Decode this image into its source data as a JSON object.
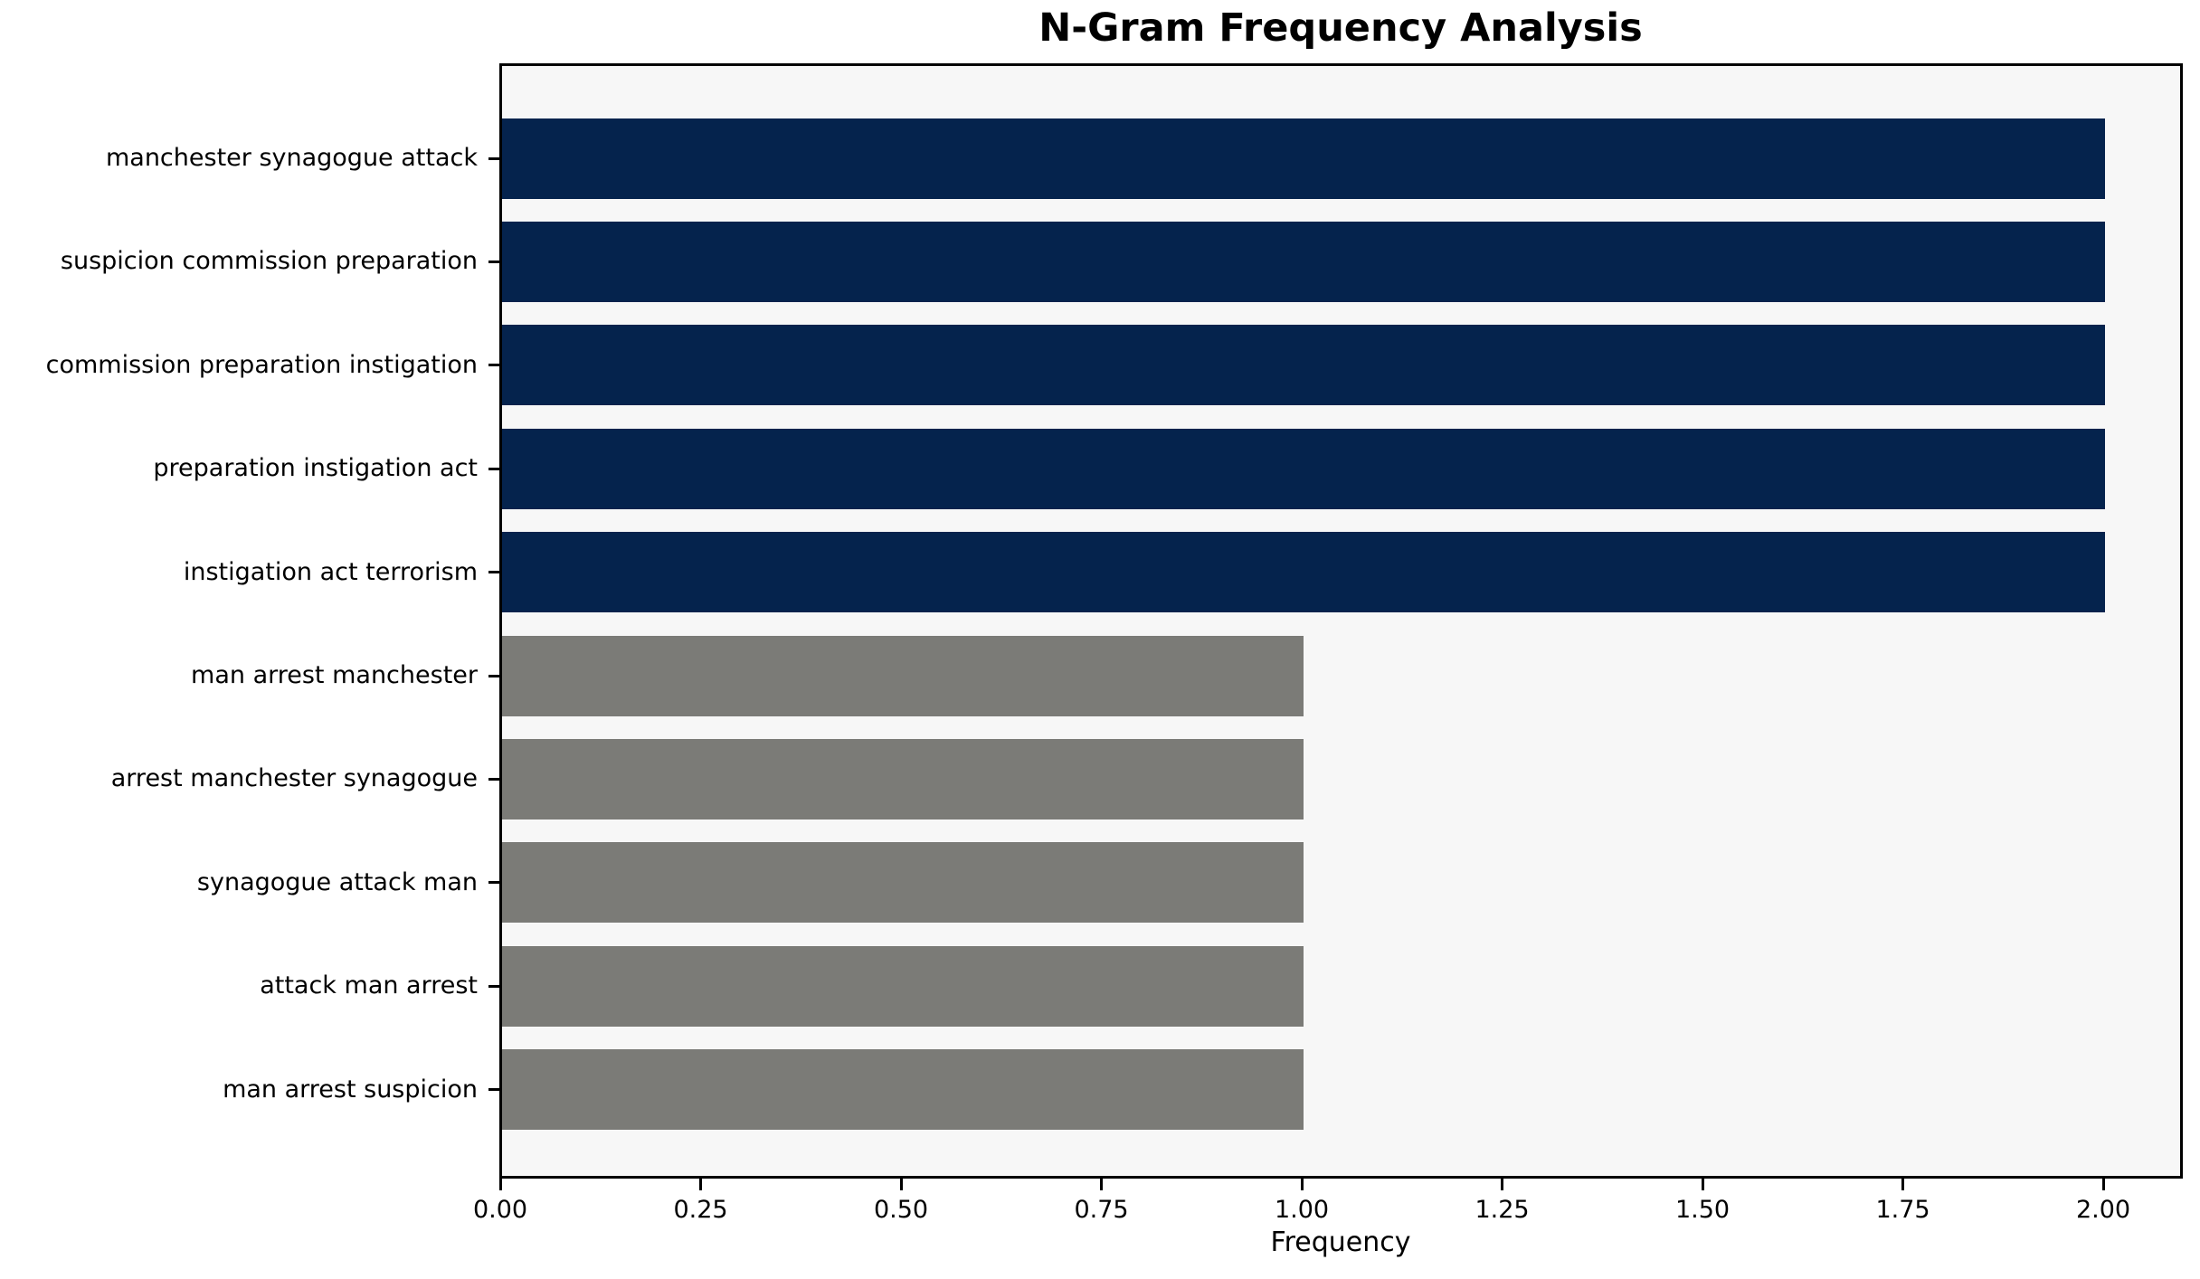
{
  "title": "N-Gram Frequency Analysis",
  "xlabel": "Frequency",
  "chart_data": {
    "type": "bar",
    "orientation": "horizontal",
    "title": "N-Gram Frequency Analysis",
    "xlabel": "Frequency",
    "ylabel": "",
    "categories": [
      "manchester synagogue attack",
      "suspicion commission preparation",
      "commission preparation instigation",
      "preparation instigation act",
      "instigation act terrorism",
      "man arrest manchester",
      "arrest manchester synagogue",
      "synagogue attack man",
      "attack man arrest",
      "man arrest suspicion"
    ],
    "values": [
      2,
      2,
      2,
      2,
      2,
      1,
      1,
      1,
      1,
      1
    ],
    "bar_colors": [
      "#05234D",
      "#05234D",
      "#05234D",
      "#05234D",
      "#05234D",
      "#7B7B77",
      "#7B7B77",
      "#7B7B77",
      "#7B7B77",
      "#7B7B77"
    ],
    "xlim": [
      0,
      2.1
    ],
    "xtick_values": [
      0.0,
      0.25,
      0.5,
      0.75,
      1.0,
      1.25,
      1.5,
      1.75,
      2.0
    ],
    "xtick_labels": [
      "0.00",
      "0.25",
      "0.50",
      "0.75",
      "1.00",
      "1.25",
      "1.50",
      "1.75",
      "2.00"
    ],
    "grid": false,
    "legend": "none",
    "plot_background": "#F7F7F7",
    "figure_background": "#FFFFFF",
    "spine_color": "#000000"
  }
}
